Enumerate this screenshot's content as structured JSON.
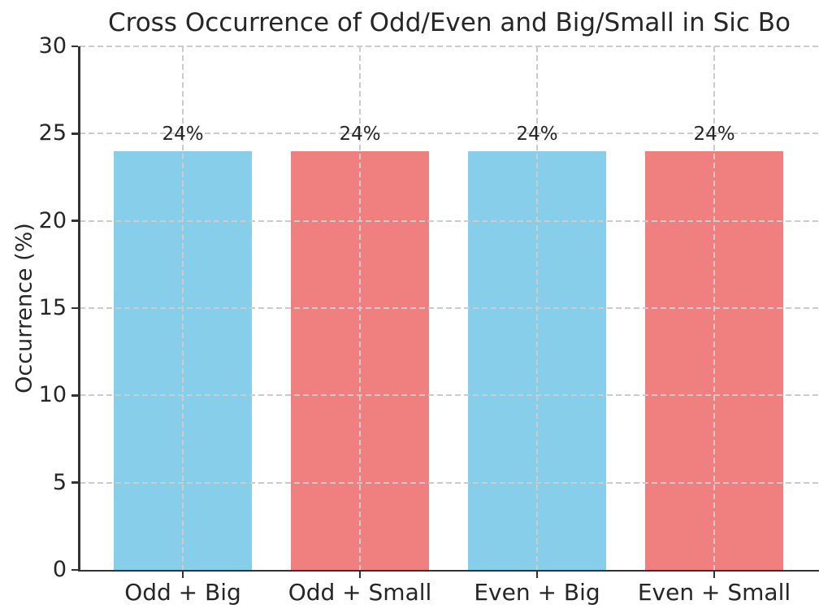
{
  "figure": {
    "background": "#FFFFFF"
  },
  "chart_data": {
    "type": "bar",
    "title": "Cross Occurrence of Odd/Even and Big/Small in Sic Bo",
    "xlabel": "",
    "ylabel": "Occurrence (%)",
    "categories": [
      "Odd + Big",
      "Odd + Small",
      "Even + Big",
      "Even + Small"
    ],
    "values": [
      24,
      24,
      24,
      24
    ],
    "bar_labels": [
      "24%",
      "24%",
      "24%",
      "24%"
    ],
    "bar_colors": [
      "#87CEEB",
      "#F08080",
      "#87CEEB",
      "#F08080"
    ],
    "ylim": [
      0,
      30
    ],
    "yticks": [
      0,
      5,
      10,
      15,
      20,
      25,
      30
    ],
    "grid": {
      "style": "dashed",
      "axes": "both",
      "drawn_over_bars": true
    },
    "colors": {
      "grid": "#CCCCCC",
      "spine": "#333333",
      "text": "#262626"
    }
  }
}
